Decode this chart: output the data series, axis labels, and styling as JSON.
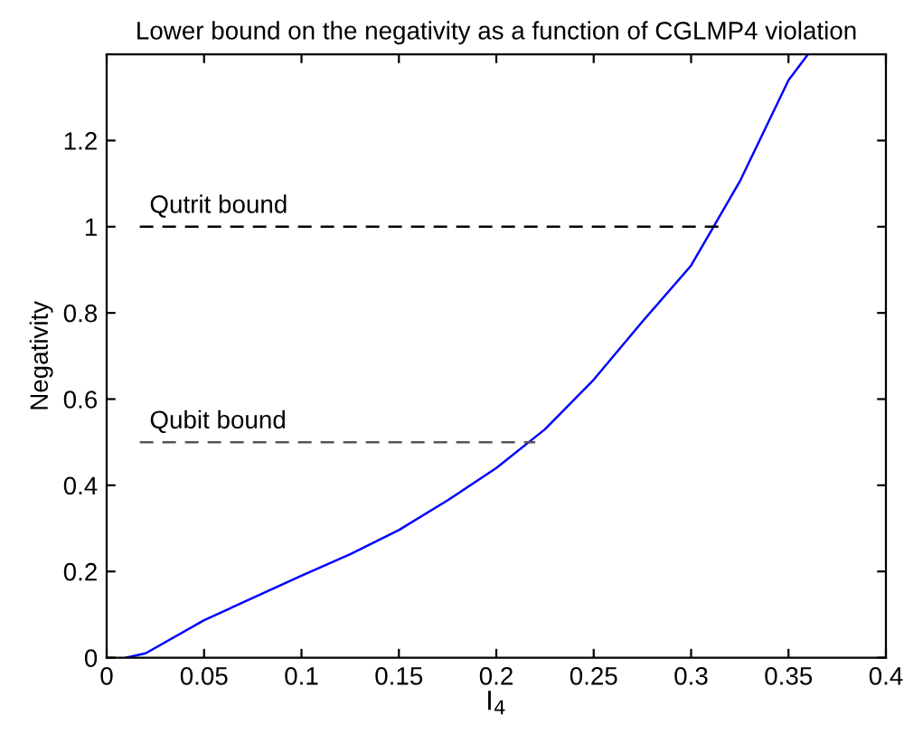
{
  "chart_data": {
    "type": "line",
    "title": "Lower bound on the negativity as a function of CGLMP4 violation",
    "xlabel": "I$_{4}$",
    "ylabel": "Negativity",
    "xlim": [
      0,
      0.4
    ],
    "xticks": [
      0,
      0.05,
      0.1,
      0.15,
      0.2,
      0.25,
      0.3,
      0.35,
      0.4
    ],
    "ylim": [
      0,
      1.4
    ],
    "yticks": [
      0,
      0.2,
      0.4,
      0.6,
      0.8,
      1,
      1.2
    ],
    "grid": false,
    "legend": false,
    "series": [
      {
        "color": "#0000ff",
        "line_style": "solid",
        "x": [
          0.01,
          0.02,
          0.05,
          0.1,
          0.125,
          0.15,
          0.175,
          0.2,
          0.225,
          0.25,
          0.275,
          0.3,
          0.325,
          0.35,
          0.36
        ],
        "values": [
          0,
          0.01,
          0.087,
          0.19,
          0.24,
          0.296,
          0.365,
          0.44,
          0.53,
          0.645,
          0.78,
          0.91,
          1.105,
          1.34,
          1.4
        ]
      },
      {
        "color": "#000000",
        "line_style": "dashed",
        "x": [
          0.017,
          0.315
        ],
        "values": [
          1,
          1
        ]
      },
      {
        "color": "#555555",
        "line_style": "dashed",
        "x": [
          0.017,
          0.22
        ],
        "values": [
          0.5,
          0.5
        ]
      }
    ],
    "annotations": [
      {
        "text": "Qutrit bound",
        "x": 0.022,
        "y": 1.02
      },
      {
        "text": "Qubit bound",
        "x": 0.022,
        "y": 0.52
      }
    ]
  }
}
